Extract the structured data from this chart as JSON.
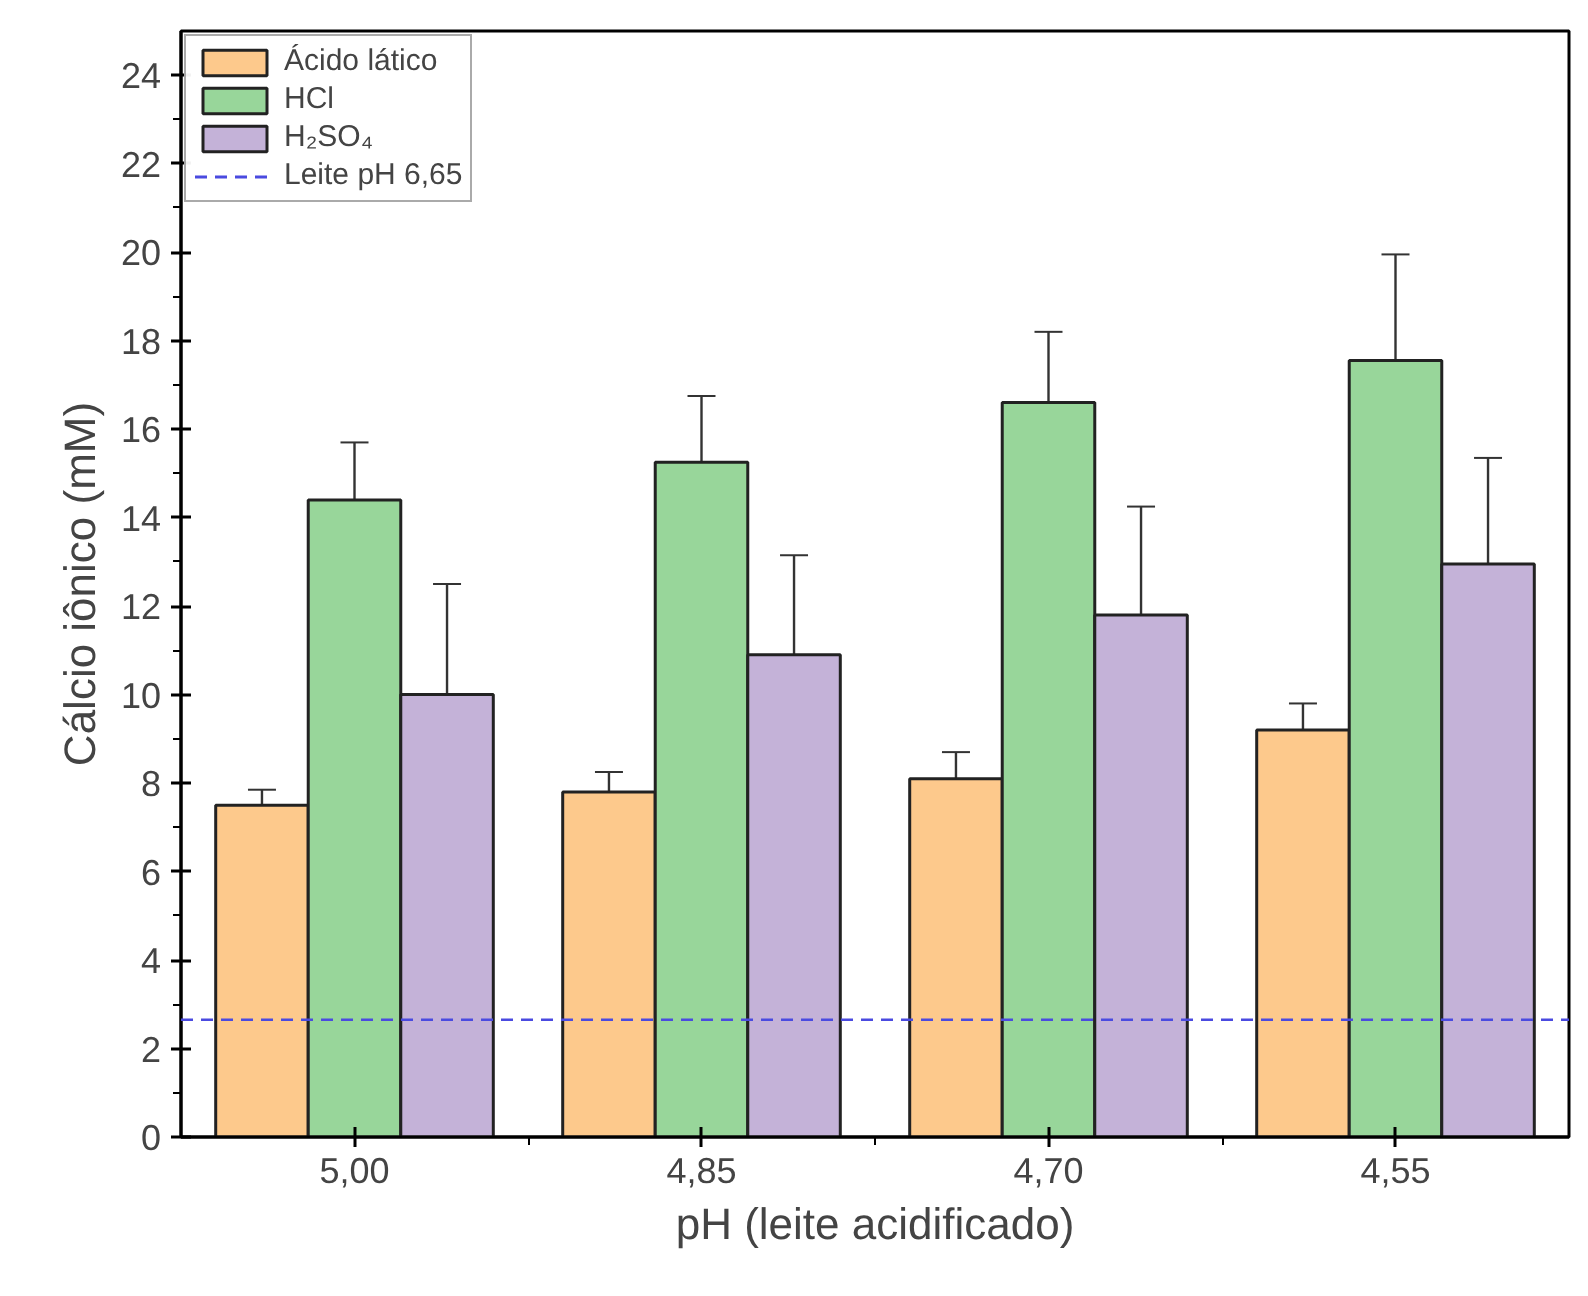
{
  "chart_data": {
    "type": "bar",
    "xlabel": "pH (leite acidificado)",
    "ylabel": "Cálcio iônico (mM)",
    "categories": [
      "5,00",
      "4,85",
      "4,70",
      "4,55"
    ],
    "series": [
      {
        "name": "Ácido lático",
        "color": "#fdc98c",
        "values": [
          7.5,
          7.8,
          8.1,
          9.2
        ],
        "errors": [
          0.35,
          0.45,
          0.6,
          0.6
        ]
      },
      {
        "name": "HCl",
        "color": "#98d69a",
        "values": [
          14.4,
          15.25,
          16.6,
          17.55
        ],
        "errors": [
          1.3,
          1.5,
          1.6,
          2.4
        ]
      },
      {
        "name": "H₂SO₄",
        "color": "#c4b2d8",
        "values": [
          10.0,
          10.9,
          11.8,
          12.95
        ],
        "errors": [
          2.5,
          2.25,
          2.45,
          2.4
        ]
      }
    ],
    "ref_lines": [
      {
        "axis": "y",
        "value": 2.65,
        "label": "Leite pH 6,65",
        "color": "#4a4ae0",
        "line_style": "dashed"
      }
    ],
    "ylim": [
      0,
      25
    ],
    "yticks": [
      0,
      {
        "value": 1,
        "label": null
      },
      2,
      {
        "value": 3,
        "label": null
      },
      4,
      {
        "value": 5,
        "label": null
      },
      6,
      {
        "value": 7,
        "label": null
      },
      8,
      {
        "value": 9,
        "label": null
      },
      10,
      {
        "value": 11,
        "label": null
      },
      12,
      {
        "value": 13,
        "label": null
      },
      14,
      {
        "value": 15,
        "label": null
      },
      16,
      {
        "value": 17,
        "label": null
      },
      18,
      {
        "value": 19,
        "label": null
      },
      20,
      {
        "value": 21,
        "label": null
      },
      22,
      {
        "value": 23,
        "label": null
      },
      24
    ],
    "grid": false,
    "legend": "top left"
  }
}
